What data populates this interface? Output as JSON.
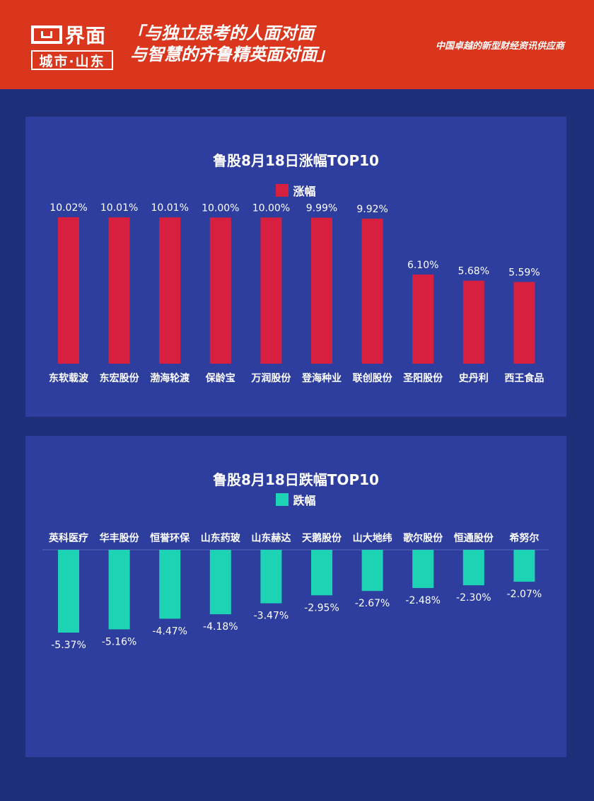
{
  "header": {
    "logo_name": "界面",
    "logo_city": "城市·山东",
    "slogan_line1": "「与独立思考的人面对面",
    "slogan_line2": "与智慧的齐鲁精英面对面」",
    "tagline": "中国卓越的新型财经资讯供应商"
  },
  "colors": {
    "header_bg": "#d9361d",
    "page_bg": "#1f2e78",
    "panel_bg": "#2d3e9e",
    "gain_bar": "#d7203f",
    "loss_bar": "#1dd3b3"
  },
  "chart_data": [
    {
      "type": "bar",
      "title": "鲁股8月18日涨幅TOP10",
      "legend": "涨幅",
      "categories": [
        "东软载波",
        "东宏股份",
        "渤海轮渡",
        "保龄宝",
        "万润股份",
        "登海种业",
        "联创股份",
        "圣阳股份",
        "史丹利",
        "西王食品"
      ],
      "values": [
        10.02,
        10.01,
        10.01,
        10.0,
        10.0,
        9.99,
        9.92,
        6.1,
        5.68,
        5.59
      ],
      "labels": [
        "10.02%",
        "10.01%",
        "10.01%",
        "10.00%",
        "10.00%",
        "9.99%",
        "9.92%",
        "6.10%",
        "5.68%",
        "5.59%"
      ],
      "ylim": [
        0,
        10.02
      ],
      "legend_position": "top-center",
      "grid": false
    },
    {
      "type": "bar",
      "title": "鲁股8月18日跌幅TOP10",
      "legend": "跌幅",
      "categories": [
        "英科医疗",
        "华丰股份",
        "恒誉环保",
        "山东药玻",
        "山东赫达",
        "天鹅股份",
        "山大地纬",
        "歌尔股份",
        "恒通股份",
        "希努尔"
      ],
      "values": [
        -5.37,
        -5.16,
        -4.47,
        -4.18,
        -3.47,
        -2.95,
        -2.67,
        -2.48,
        -2.3,
        -2.07
      ],
      "labels": [
        "-5.37%",
        "-5.16%",
        "-4.47%",
        "-4.18%",
        "-3.47%",
        "-2.95%",
        "-2.67%",
        "-2.48%",
        "-2.30%",
        "-2.07%"
      ],
      "ylim": [
        -5.37,
        0
      ],
      "legend_position": "top-center",
      "grid": false
    }
  ]
}
